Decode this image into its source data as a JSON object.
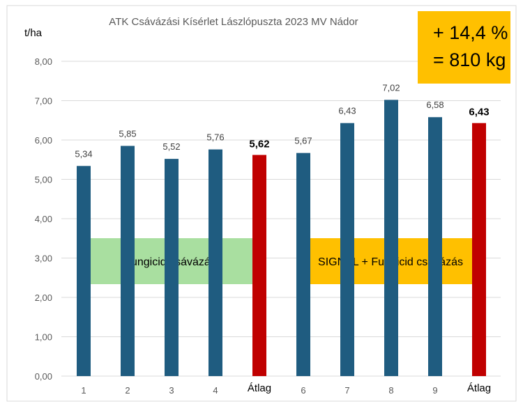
{
  "chart_data": {
    "type": "bar",
    "title": "ATK Csávázási Kísérlet  Lászlópuszta 2023 MV Nádor",
    "ylabel": "t/ha",
    "xlabel": "",
    "ylim": [
      0,
      8
    ],
    "yticks": [
      "0,00",
      "1,00",
      "2,00",
      "3,00",
      "4,00",
      "5,00",
      "6,00",
      "7,00",
      "8,00"
    ],
    "grid": true,
    "categories": [
      "1",
      "2",
      "3",
      "4",
      "Átlag",
      "6",
      "7",
      "8",
      "9",
      "Átlag"
    ],
    "values": [
      5.34,
      5.85,
      5.52,
      5.76,
      5.62,
      5.67,
      6.43,
      7.02,
      6.58,
      6.43
    ],
    "value_labels": [
      "5,34",
      "5,85",
      "5,52",
      "5,76",
      "5,62",
      "5,67",
      "6,43",
      "7,02",
      "6,58",
      "6,43"
    ],
    "bar_colors": [
      "#1f5c80",
      "#1f5c80",
      "#1f5c80",
      "#1f5c80",
      "#c00000",
      "#1f5c80",
      "#1f5c80",
      "#1f5c80",
      "#1f5c80",
      "#c00000"
    ],
    "emphasized_labels": [
      4,
      9
    ],
    "annotations": [
      {
        "text": "Fungicid csávázás",
        "color": "#a9dfa0",
        "span": [
          0,
          4
        ]
      },
      {
        "text": "SIGNAL +  Fungicid csávázás",
        "color": "#ffc000",
        "span": [
          5,
          9
        ]
      }
    ]
  },
  "highlight": {
    "line1": "+ 14,4 %",
    "line2": "= 810 kg",
    "color": "#ffc000"
  }
}
